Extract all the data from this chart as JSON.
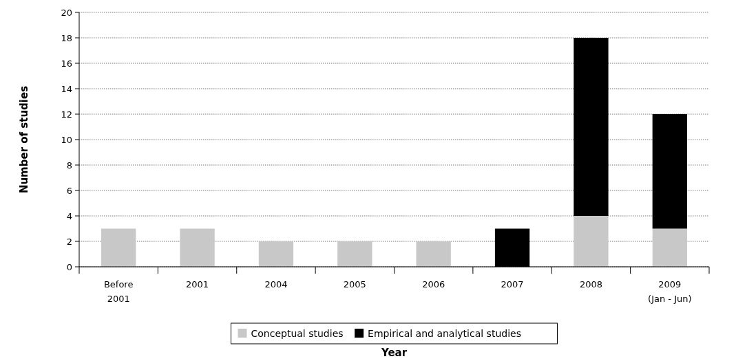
{
  "chart_data": {
    "type": "bar",
    "stacked": true,
    "xlabel": "Year",
    "ylabel": "Number of studies",
    "categories": [
      "Before 2001",
      "2001",
      "2004",
      "2005",
      "2006",
      "2007",
      "2008",
      "2009 (Jan - Jun)"
    ],
    "series": [
      {
        "name": "Conceptual studies",
        "color": "#c8c8c8",
        "values": [
          3,
          3,
          2,
          2,
          2,
          0,
          4,
          3
        ]
      },
      {
        "name": "Empirical and analytical studies",
        "color": "#000000",
        "values": [
          0,
          0,
          0,
          0,
          0,
          3,
          14,
          9
        ]
      }
    ],
    "ylim": [
      0,
      20
    ],
    "yticks": [
      0,
      2,
      4,
      6,
      8,
      10,
      12,
      14,
      16,
      18,
      20
    ],
    "grid": "y",
    "legend": "bottom"
  }
}
